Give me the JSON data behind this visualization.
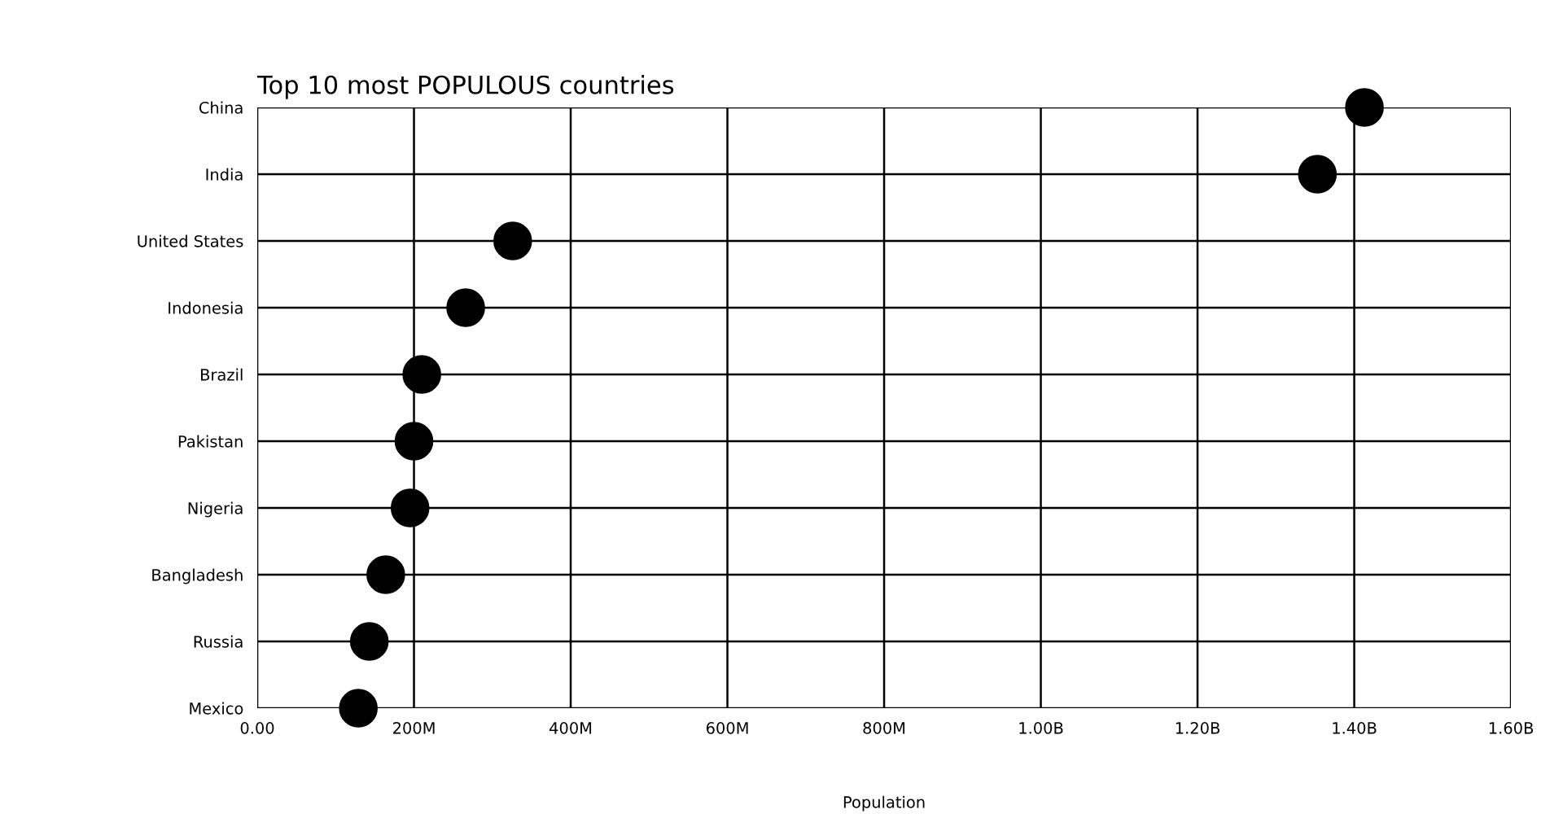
{
  "chart_data": {
    "type": "scatter",
    "orientation": "horizontal",
    "title": "Top 10 most POPULOUS countries",
    "xlabel": "Population",
    "categories": [
      "China",
      "India",
      "United States",
      "Indonesia",
      "Brazil",
      "Pakistan",
      "Nigeria",
      "Bangladesh",
      "Russia",
      "Mexico"
    ],
    "series": [
      {
        "color": "#000000",
        "values": [
          1413000000,
          1353000000,
          326000000,
          266000000,
          210000000,
          200000000,
          195000000,
          164000000,
          143000000,
          129000000
        ]
      }
    ],
    "xlim": [
      0,
      1600000000
    ],
    "xticks": [
      {
        "value": 0,
        "label": "0.00"
      },
      {
        "value": 200000000,
        "label": "200M"
      },
      {
        "value": 400000000,
        "label": "400M"
      },
      {
        "value": 600000000,
        "label": "600M"
      },
      {
        "value": 800000000,
        "label": "800M"
      },
      {
        "value": 1000000000,
        "label": "1.00B"
      },
      {
        "value": 1200000000,
        "label": "1.20B"
      },
      {
        "value": 1400000000,
        "label": "1.40B"
      },
      {
        "value": 1600000000,
        "label": "1.60B"
      }
    ],
    "grid": true,
    "marker": "circle"
  }
}
